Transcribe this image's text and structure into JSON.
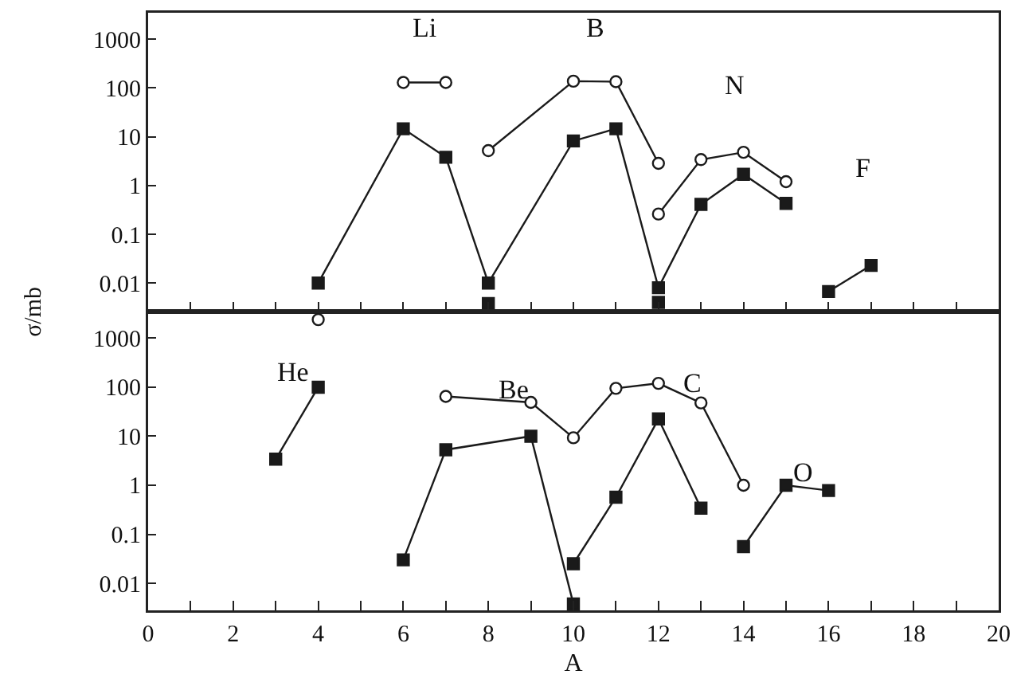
{
  "chart_data": [
    {
      "type": "line",
      "ylabel": "σ/mb",
      "log": "y",
      "xlim": [
        0,
        20
      ],
      "ylim": [
        0.0026,
        3500
      ],
      "tick_labels": "y",
      "xticks": [
        {
          "value": 0,
          "label": null
        },
        {
          "value": 1,
          "label": null
        },
        {
          "value": 2,
          "label": null
        },
        {
          "value": 3,
          "label": null
        },
        {
          "value": 4,
          "label": null
        },
        {
          "value": 5,
          "label": null
        },
        {
          "value": 6,
          "label": null
        },
        {
          "value": 7,
          "label": null
        },
        {
          "value": 8,
          "label": null
        },
        {
          "value": 9,
          "label": null
        },
        {
          "value": 10,
          "label": null
        },
        {
          "value": 11,
          "label": null
        },
        {
          "value": 12,
          "label": null
        },
        {
          "value": 13,
          "label": null
        },
        {
          "value": 14,
          "label": null
        },
        {
          "value": 15,
          "label": null
        },
        {
          "value": 16,
          "label": null
        },
        {
          "value": 17,
          "label": null
        },
        {
          "value": 18,
          "label": null
        },
        {
          "value": 19,
          "label": null
        },
        {
          "value": 20,
          "label": null
        }
      ],
      "yticks": [
        0.01,
        0.1,
        1,
        10,
        100,
        1000
      ],
      "series": [
        {
          "color": "#1a1a1a",
          "marker": "square",
          "x": [
            4,
            6,
            7,
            8,
            10,
            11,
            12,
            13,
            14,
            15
          ],
          "values": [
            0.01,
            14.6,
            3.8,
            0.01,
            8.2,
            14.6,
            0.008,
            0.41,
            1.7,
            0.43
          ]
        },
        {
          "color": "#1a1a1a",
          "type": "scatter",
          "marker": "square",
          "x": [
            8,
            12
          ],
          "values": [
            0.0038,
            0.004
          ]
        },
        {
          "color": "#1a1a1a",
          "marker": "square",
          "x": [
            16,
            17
          ],
          "values": [
            0.0067,
            0.023
          ]
        },
        {
          "color": "#1a1a1a",
          "marker": "circle",
          "x": [
            6,
            7
          ],
          "values": [
            130,
            130
          ]
        },
        {
          "color": "#1a1a1a",
          "marker": "circle",
          "x": [
            8,
            10,
            11,
            12
          ],
          "values": [
            5.2,
            138,
            135,
            2.85
          ]
        },
        {
          "color": "#1a1a1a",
          "marker": "circle",
          "x": [
            12,
            13,
            14,
            15
          ],
          "values": [
            0.26,
            3.4,
            4.8,
            1.2
          ]
        }
      ],
      "annotations": [
        "Li",
        "B",
        "N",
        "F"
      ]
    },
    {
      "type": "line",
      "xlabel": "A",
      "log": "y",
      "xlim": [
        0,
        20
      ],
      "ylim": [
        0.0028,
        3500
      ],
      "xticks": [
        0,
        {
          "value": 1,
          "label": null
        },
        2,
        {
          "value": 3,
          "label": null
        },
        4,
        {
          "value": 5,
          "label": null
        },
        6,
        {
          "value": 7,
          "label": null
        },
        8,
        {
          "value": 9,
          "label": null
        },
        10,
        {
          "value": 11,
          "label": null
        },
        12,
        {
          "value": 13,
          "label": null
        },
        14,
        {
          "value": 15,
          "label": null
        },
        16,
        {
          "value": 17,
          "label": null
        },
        18,
        {
          "value": 19,
          "label": null
        },
        20
      ],
      "yticks": [
        0.01,
        0.1,
        1,
        10,
        100,
        1000
      ],
      "series": [
        {
          "color": "#1a1a1a",
          "marker": "square",
          "x": [
            3,
            4
          ],
          "values": [
            3.4,
            100
          ]
        },
        {
          "color": "#1a1a1a",
          "type": "scatter",
          "marker": "circle",
          "x": [
            4
          ],
          "values": [
            2400
          ]
        },
        {
          "color": "#1a1a1a",
          "marker": "square",
          "x": [
            6,
            7,
            9,
            10
          ],
          "values": [
            0.03,
            5.3,
            10,
            0.0038
          ]
        },
        {
          "color": "#1a1a1a",
          "marker": "circle",
          "x": [
            7,
            9,
            10,
            11,
            12,
            13,
            14
          ],
          "values": [
            65,
            49,
            9.3,
            95,
            120,
            48,
            1
          ]
        },
        {
          "color": "#1a1a1a",
          "marker": "square",
          "x": [
            10,
            11,
            12,
            13
          ],
          "values": [
            0.025,
            0.57,
            22.5,
            0.34
          ]
        },
        {
          "color": "#1a1a1a",
          "marker": "square",
          "x": [
            14,
            15,
            16
          ],
          "values": [
            0.056,
            1.0,
            0.78
          ]
        }
      ],
      "annotations": [
        "He",
        "Be",
        "C",
        "O"
      ]
    }
  ]
}
